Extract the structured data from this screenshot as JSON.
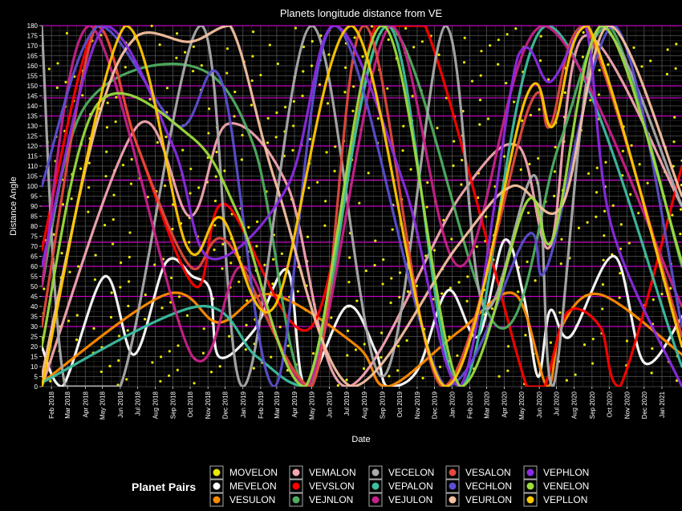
{
  "chart_data": {
    "type": "line",
    "title": "Planets longitude distance from VE",
    "xlabel": "Date",
    "ylabel": "Distance Angle",
    "ylim": [
      0,
      180
    ],
    "yticks": [
      0,
      5,
      10,
      15,
      20,
      25,
      30,
      35,
      40,
      45,
      50,
      55,
      60,
      65,
      70,
      75,
      80,
      85,
      90,
      95,
      100,
      105,
      110,
      115,
      120,
      125,
      130,
      135,
      140,
      145,
      150,
      155,
      160,
      165,
      170,
      175,
      180
    ],
    "x_ticks": [
      "Feb 2018",
      "Mar 2018",
      "Apr 2018",
      "May 2018",
      "Jun 2018",
      "Jul 2018",
      "Aug 2018",
      "Sep 2018",
      "Oct 2018",
      "Nov 2018",
      "Dec 2018",
      "Jan 2019",
      "Feb 2019",
      "Mar 2019",
      "Apr 2019",
      "May 2019",
      "Jun 2019",
      "Jul 2019",
      "Aug 2019",
      "Sep 2019",
      "Oct 2019",
      "Nov 2019",
      "Dec 2019",
      "Jan 2020",
      "Feb 2020",
      "Mar 2020",
      "Apr 2020",
      "May 2020",
      "Jun 2020",
      "Jul 2020",
      "Aug 2020",
      "Sep 2020",
      "Oct 2020",
      "Nov 2020",
      "Dec 2020",
      "Jan 2021"
    ],
    "x_start": "2018-01-15",
    "x_end": "2021-02-05",
    "magenta_lines": [
      30,
      45,
      60,
      72,
      90,
      103,
      120,
      135,
      144,
      150,
      180
    ],
    "grid": true,
    "legend_title": "Planet Pairs",
    "legend_position": "bottom",
    "series": [
      {
        "name": "MOVELON",
        "color": "#e8e800",
        "style": "dots"
      },
      {
        "name": "MEVELON",
        "color": "#ffffff",
        "points": [
          [
            "2018-01-15",
            20
          ],
          [
            "2018-02-20",
            0
          ],
          [
            "2018-05-05",
            55
          ],
          [
            "2018-06-25",
            16
          ],
          [
            "2018-08-20",
            62
          ],
          [
            "2018-10-05",
            55
          ],
          [
            "2018-11-05",
            48
          ],
          [
            "2018-11-20",
            15
          ],
          [
            "2019-01-20",
            28
          ],
          [
            "2019-03-20",
            58
          ],
          [
            "2019-04-20",
            0
          ],
          [
            "2019-07-01",
            40
          ],
          [
            "2019-08-20",
            18
          ],
          [
            "2019-09-10",
            0
          ],
          [
            "2019-11-01",
            8
          ],
          [
            "2019-12-25",
            48
          ],
          [
            "2020-02-15",
            25
          ],
          [
            "2020-04-01",
            73
          ],
          [
            "2020-05-05",
            45
          ],
          [
            "2020-05-30",
            5
          ],
          [
            "2020-06-20",
            38
          ],
          [
            "2020-07-25",
            25
          ],
          [
            "2020-10-10",
            65
          ],
          [
            "2020-12-01",
            12
          ],
          [
            "2021-02-05",
            35
          ]
        ]
      },
      {
        "name": "VESULON",
        "color": "#ff8c00",
        "points": [
          [
            "2018-01-15",
            2
          ],
          [
            "2018-08-20",
            46
          ],
          [
            "2018-11-20",
            32
          ],
          [
            "2019-02-20",
            46
          ],
          [
            "2019-07-20",
            20
          ],
          [
            "2019-09-10",
            0
          ],
          [
            "2020-01-15",
            28
          ],
          [
            "2020-04-20",
            46
          ],
          [
            "2020-06-15",
            0
          ],
          [
            "2020-07-10",
            30
          ],
          [
            "2020-09-15",
            46
          ],
          [
            "2021-02-05",
            16
          ]
        ]
      },
      {
        "name": "VEMALON",
        "color": "#f4a6b0",
        "points": [
          [
            "2018-01-15",
            0
          ],
          [
            "2018-07-01",
            130
          ],
          [
            "2018-10-01",
            85
          ],
          [
            "2018-12-05",
            131
          ],
          [
            "2019-03-20",
            100
          ],
          [
            "2019-07-01",
            0
          ],
          [
            "2020-01-15",
            95
          ],
          [
            "2020-04-25",
            120
          ],
          [
            "2020-06-20",
            70
          ],
          [
            "2020-08-20",
            175
          ],
          [
            "2021-02-05",
            90
          ]
        ]
      },
      {
        "name": "VEVSLON",
        "color": "#ff0000",
        "points": [
          [
            "2018-01-15",
            68
          ],
          [
            "2018-04-20",
            180
          ],
          [
            "2018-07-01",
            120
          ],
          [
            "2018-10-10",
            50
          ],
          [
            "2018-12-01",
            91
          ],
          [
            "2019-05-01",
            30
          ],
          [
            "2019-08-20",
            180
          ],
          [
            "2019-11-15",
            180
          ],
          [
            "2020-05-10",
            0
          ],
          [
            "2020-06-10",
            0
          ],
          [
            "2020-07-20",
            37
          ],
          [
            "2020-09-15",
            30
          ],
          [
            "2020-10-20",
            0
          ],
          [
            "2021-02-05",
            110
          ]
        ]
      },
      {
        "name": "VEJNLON",
        "color": "#4fae60",
        "points": [
          [
            "2018-01-15",
            50
          ],
          [
            "2018-04-01",
            140
          ],
          [
            "2018-10-01",
            160
          ],
          [
            "2019-01-20",
            120
          ],
          [
            "2019-04-25",
            0
          ],
          [
            "2019-09-10",
            180
          ],
          [
            "2020-03-20",
            30
          ],
          [
            "2020-07-05",
            120
          ],
          [
            "2020-10-01",
            180
          ],
          [
            "2021-02-05",
            60
          ]
        ]
      },
      {
        "name": "VECELON",
        "color": "#aaaaaa",
        "points": [
          [
            "2018-01-15",
            180
          ],
          [
            "2018-02-25",
            0
          ],
          [
            "2018-06-01",
            0
          ],
          [
            "2018-10-20",
            180
          ],
          [
            "2019-01-01",
            0
          ],
          [
            "2019-05-01",
            180
          ],
          [
            "2019-09-01",
            5
          ],
          [
            "2019-12-20",
            180
          ],
          [
            "2020-02-25",
            40
          ],
          [
            "2020-05-25",
            105
          ],
          [
            "2020-06-25",
            0
          ],
          [
            "2020-09-15",
            180
          ],
          [
            "2021-02-05",
            90
          ]
        ]
      },
      {
        "name": "VEPALON",
        "color": "#3cbea0",
        "points": [
          [
            "2018-01-15",
            2
          ],
          [
            "2018-10-15",
            40
          ],
          [
            "2019-01-25",
            15
          ],
          [
            "2019-04-25",
            0
          ],
          [
            "2019-09-10",
            180
          ],
          [
            "2020-01-15",
            0
          ],
          [
            "2020-06-15",
            180
          ],
          [
            "2021-02-05",
            10
          ]
        ]
      },
      {
        "name": "VEJULON",
        "color": "#c8208a",
        "points": [
          [
            "2018-01-15",
            50
          ],
          [
            "2018-04-10",
            180
          ],
          [
            "2018-10-05",
            15
          ],
          [
            "2019-01-01",
            60
          ],
          [
            "2019-04-25",
            0
          ],
          [
            "2019-09-15",
            180
          ],
          [
            "2020-01-15",
            60
          ],
          [
            "2020-06-10",
            180
          ],
          [
            "2021-02-05",
            40
          ]
        ]
      },
      {
        "name": "VESALON",
        "color": "#e24a3c",
        "points": [
          [
            "2018-01-15",
            30
          ],
          [
            "2018-04-20",
            180
          ],
          [
            "2018-07-01",
            120
          ],
          [
            "2018-10-01",
            60
          ],
          [
            "2018-12-05",
            72
          ],
          [
            "2019-05-01",
            0
          ],
          [
            "2019-08-01",
            180
          ],
          [
            "2019-12-15",
            0
          ],
          [
            "2020-05-15",
            140
          ],
          [
            "2020-06-20",
            130
          ],
          [
            "2020-08-20",
            180
          ],
          [
            "2021-02-05",
            25
          ]
        ]
      },
      {
        "name": "VECHLON",
        "color": "#5a4fcf",
        "points": [
          [
            "2018-01-15",
            100
          ],
          [
            "2018-04-25",
            180
          ],
          [
            "2018-09-10",
            130
          ],
          [
            "2018-11-25",
            152
          ],
          [
            "2019-02-25",
            0
          ],
          [
            "2019-06-10",
            180
          ],
          [
            "2019-12-20",
            0
          ],
          [
            "2020-05-10",
            75
          ],
          [
            "2020-06-15",
            60
          ],
          [
            "2020-10-10",
            180
          ],
          [
            "2021-02-05",
            30
          ]
        ]
      },
      {
        "name": "VEURLON",
        "color": "#f5c1a0",
        "points": [
          [
            "2018-01-15",
            5
          ],
          [
            "2018-04-20",
            130
          ],
          [
            "2018-07-01",
            175
          ],
          [
            "2018-10-01",
            172
          ],
          [
            "2018-12-10",
            180
          ],
          [
            "2019-03-01",
            100
          ],
          [
            "2019-07-10",
            0
          ],
          [
            "2020-01-10",
            70
          ],
          [
            "2020-04-15",
            100
          ],
          [
            "2020-07-10",
            90
          ],
          [
            "2020-10-01",
            180
          ],
          [
            "2021-02-05",
            95
          ]
        ]
      },
      {
        "name": "VEPHLON",
        "color": "#8a2be2",
        "points": [
          [
            "2018-01-15",
            60
          ],
          [
            "2018-05-05",
            180
          ],
          [
            "2018-09-01",
            120
          ],
          [
            "2018-11-05",
            64
          ],
          [
            "2019-03-20",
            100
          ],
          [
            "2019-06-10",
            180
          ],
          [
            "2019-10-10",
            100
          ],
          [
            "2020-01-15",
            0
          ],
          [
            "2020-04-25",
            165
          ],
          [
            "2020-06-20",
            152
          ],
          [
            "2020-08-20",
            180
          ],
          [
            "2020-10-05",
            80
          ],
          [
            "2021-02-05",
            0
          ]
        ]
      },
      {
        "name": "VENELON",
        "color": "#9bdc3c",
        "points": [
          [
            "2018-01-15",
            20
          ],
          [
            "2018-04-20",
            140
          ],
          [
            "2018-10-01",
            125
          ],
          [
            "2018-12-25",
            85
          ],
          [
            "2019-04-20",
            0
          ],
          [
            "2019-09-01",
            180
          ],
          [
            "2020-01-15",
            0
          ],
          [
            "2020-05-10",
            92
          ],
          [
            "2020-06-25",
            74
          ],
          [
            "2020-09-20",
            180
          ],
          [
            "2021-02-05",
            62
          ]
        ]
      },
      {
        "name": "VEPLLON",
        "color": "#ffc800",
        "points": [
          [
            "2018-01-15",
            0
          ],
          [
            "2018-06-10",
            180
          ],
          [
            "2018-09-25",
            70
          ],
          [
            "2018-11-25",
            84
          ],
          [
            "2019-02-25",
            40
          ],
          [
            "2019-07-10",
            180
          ],
          [
            "2019-12-20",
            0
          ],
          [
            "2020-05-10",
            145
          ],
          [
            "2020-06-25",
            130
          ],
          [
            "2020-08-25",
            180
          ],
          [
            "2021-02-05",
            20
          ]
        ]
      }
    ]
  }
}
